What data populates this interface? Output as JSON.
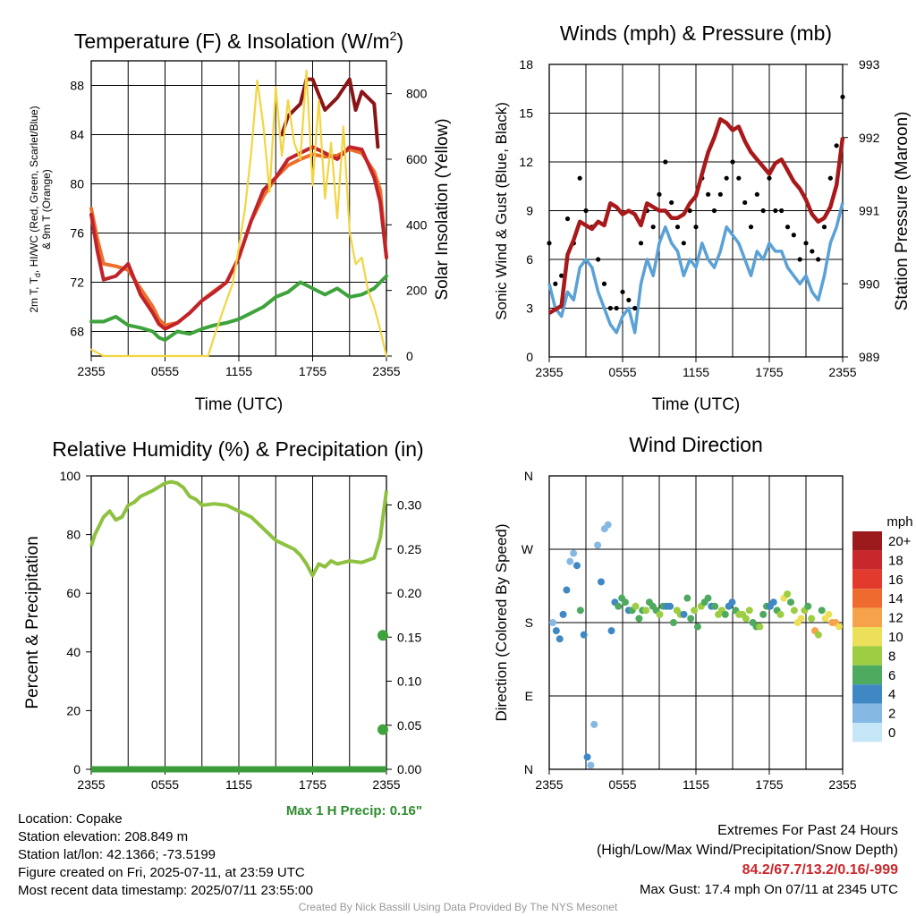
{
  "chart_data": [
    {
      "type": "line",
      "title": "Temperature (F) & Insolation (W/m²)",
      "title_parts": [
        "Temperature (F) & Insolation (W/m",
        "2",
        ")"
      ],
      "xlabel": "Time (UTC)",
      "ylabel_lines": [
        "2m T, T",
        "d",
        ", HI/WC (Red, Green, Scarlet/Blue)",
        "& 9m T (Orange)"
      ],
      "y2label": "Solar Insolation (Yellow)",
      "x_ticks": [
        "2355",
        "0555",
        "1155",
        "1755",
        "2355"
      ],
      "xlim": [
        0,
        24
      ],
      "ylim": [
        66,
        90
      ],
      "y_ticks": [
        68,
        72,
        76,
        80,
        84,
        88
      ],
      "y2lim": [
        0,
        900
      ],
      "y2_ticks": [
        0,
        200,
        400,
        600,
        800
      ],
      "grid": true,
      "series": [
        {
          "color": "#ee6f2c",
          "axis": "left",
          "x": [
            0,
            0.5,
            1,
            2,
            3,
            4,
            5,
            5.5,
            6,
            7,
            8,
            9,
            10,
            11,
            12,
            13,
            14,
            15,
            16,
            17,
            18,
            19,
            20,
            21,
            22,
            23,
            23.5,
            24
          ],
          "y": [
            78,
            75.5,
            73.5,
            73.3,
            73,
            71.5,
            70,
            69,
            68.5,
            68.7,
            69.5,
            70.5,
            71.3,
            72,
            74,
            77,
            79,
            80.5,
            81.5,
            82,
            82.4,
            82.2,
            82.3,
            82.8,
            82.5,
            81,
            79.5,
            74
          ]
        },
        {
          "color": "#c1232a",
          "axis": "left",
          "x": [
            0,
            0.5,
            1,
            2,
            3,
            4,
            5,
            5.5,
            6,
            7,
            8,
            9,
            10,
            11,
            12,
            13,
            14,
            15,
            16,
            17,
            18,
            19,
            20,
            21,
            22,
            23,
            23.5,
            24
          ],
          "y": [
            77.5,
            74.5,
            72.2,
            72.5,
            73.5,
            71,
            69.5,
            68.6,
            68.2,
            68.7,
            69.5,
            70.5,
            71.2,
            72,
            74,
            77,
            79.5,
            80.5,
            82,
            82.5,
            83,
            82.5,
            82,
            83,
            82.8,
            80.5,
            78.5,
            74
          ]
        },
        {
          "color": "#3ea33c",
          "axis": "left",
          "x": [
            0,
            1,
            2,
            3,
            4,
            5,
            5.5,
            6,
            7,
            8,
            9,
            10,
            11,
            12,
            13,
            14,
            15,
            16,
            17,
            18,
            19,
            20,
            21,
            22,
            23,
            24
          ],
          "y": [
            68.8,
            68.8,
            69.2,
            68.5,
            68.3,
            68,
            67.5,
            67.3,
            68,
            67.8,
            68.2,
            68.5,
            68.7,
            69,
            69.5,
            70,
            70.8,
            71.2,
            72,
            71.5,
            71,
            71.5,
            70.8,
            71,
            71.5,
            72.5
          ]
        },
        {
          "color": "#8b1416",
          "axis": "left",
          "x": [
            15.5,
            16,
            17,
            17.5,
            18,
            19,
            20,
            21,
            21.5,
            22,
            23,
            23.3
          ],
          "y": [
            84,
            85.5,
            86.5,
            88.5,
            88.5,
            86,
            87,
            88.5,
            86,
            87.5,
            86.5,
            83
          ]
        },
        {
          "color": "#f3d542",
          "axis": "right",
          "x": [
            0,
            1,
            2,
            3,
            4,
            5,
            6,
            7,
            8,
            9,
            9.5,
            10,
            11,
            11.5,
            12,
            12.5,
            13,
            13.5,
            14,
            14.5,
            15,
            15.5,
            16,
            16.5,
            17,
            17.5,
            18,
            18.5,
            19,
            19.5,
            20,
            20.5,
            21,
            21.5,
            22,
            22.5,
            23,
            23.5,
            24
          ],
          "y": [
            20,
            0,
            0,
            0,
            0,
            0,
            0,
            0,
            0,
            0,
            0,
            60,
            170,
            220,
            330,
            450,
            620,
            840,
            700,
            500,
            820,
            610,
            780,
            650,
            600,
            870,
            520,
            780,
            480,
            650,
            420,
            700,
            380,
            280,
            300,
            200,
            150,
            80,
            0
          ]
        }
      ]
    },
    {
      "type": "line",
      "title": "Winds (mph) & Pressure (mb)",
      "xlabel": "Time (UTC)",
      "ylabel": "Sonic Wind & Gust (Blue, Black)",
      "y2label": "Station Pressure (Maroon)",
      "x_ticks": [
        "2355",
        "0555",
        "1155",
        "1755",
        "2355"
      ],
      "xlim": [
        0,
        24
      ],
      "ylim": [
        0,
        18
      ],
      "y_ticks": [
        0,
        3,
        6,
        9,
        12,
        15,
        18
      ],
      "y2lim": [
        989,
        993
      ],
      "y2_ticks": [
        989,
        990,
        991,
        992,
        993
      ],
      "grid": true,
      "series": [
        {
          "color": "#5aa1d6",
          "kind": "wind",
          "x": [
            0,
            0.5,
            1,
            1.5,
            2,
            2.5,
            3,
            3.5,
            4,
            4.5,
            5,
            5.5,
            6,
            6.5,
            7,
            7.5,
            8,
            8.5,
            9,
            9.5,
            10,
            10.5,
            11,
            11.5,
            12,
            12.5,
            13,
            13.5,
            14,
            14.5,
            15,
            15.5,
            16,
            16.5,
            17,
            17.5,
            18,
            18.5,
            19,
            19.5,
            20,
            20.5,
            21,
            21.5,
            22,
            22.5,
            23,
            23.5,
            24
          ],
          "y": [
            4.5,
            3,
            2.5,
            4,
            3.5,
            5.5,
            6,
            5.5,
            4,
            3,
            2,
            1.5,
            2.5,
            3,
            1.5,
            4.5,
            6,
            5,
            7,
            8,
            7,
            6.5,
            5,
            6,
            5.5,
            7,
            6,
            5.5,
            6.5,
            8,
            7.5,
            7,
            6,
            5,
            6.5,
            6,
            7,
            6.5,
            6.5,
            5.5,
            5,
            4.5,
            5,
            4,
            3.5,
            5,
            7,
            8,
            9.5
          ]
        },
        {
          "color": "#000000",
          "kind": "gust",
          "x": [
            0,
            0.5,
            1,
            1.5,
            2,
            2.5,
            3,
            3.5,
            4,
            4.5,
            5,
            5.5,
            6,
            6.5,
            7,
            7.5,
            8,
            8.5,
            9,
            9.5,
            10,
            10.5,
            11,
            11.5,
            12,
            12.5,
            13,
            13.5,
            14,
            14.5,
            15,
            15.5,
            16,
            16.5,
            17,
            17.5,
            18,
            18.5,
            19,
            19.5,
            20,
            20.5,
            21,
            21.5,
            22,
            22.5,
            23,
            23.5,
            24
          ],
          "y": [
            7,
            4.5,
            5,
            8.5,
            7,
            11,
            9,
            8,
            6,
            4.5,
            3,
            3,
            4,
            3.5,
            3,
            7,
            9,
            8,
            10,
            12,
            9.5,
            8,
            7,
            9,
            8,
            11,
            10,
            9,
            10,
            11,
            12,
            11,
            9.5,
            8,
            10,
            9,
            11,
            9,
            9,
            8,
            7.5,
            6,
            7,
            6.5,
            6,
            8,
            11,
            13,
            16
          ]
        },
        {
          "color": "#a8191b",
          "kind": "pressure",
          "x": [
            0,
            0.5,
            1,
            1.5,
            2,
            2.5,
            3,
            3.5,
            4,
            4.5,
            5,
            5.5,
            6,
            6.5,
            7,
            7.5,
            8,
            8.5,
            9,
            9.5,
            10,
            10.5,
            11,
            11.5,
            12,
            12.5,
            13,
            13.5,
            14,
            14.5,
            15,
            15.5,
            16,
            16.5,
            17,
            17.5,
            18,
            18.5,
            19,
            19.5,
            20,
            20.5,
            21,
            21.5,
            22,
            22.5,
            23,
            23.5,
            24
          ],
          "y": [
            989.6,
            989.65,
            989.7,
            990.4,
            990.6,
            990.85,
            990.8,
            990.75,
            990.85,
            990.8,
            991.1,
            991.05,
            990.95,
            991.0,
            990.95,
            990.8,
            991.1,
            991.05,
            991.0,
            991.0,
            990.9,
            990.9,
            990.95,
            991.1,
            991.2,
            991.5,
            991.8,
            992.0,
            992.25,
            992.2,
            992.1,
            992.15,
            991.95,
            991.8,
            991.7,
            991.6,
            991.5,
            991.65,
            991.7,
            991.55,
            991.4,
            991.3,
            991.15,
            990.95,
            990.85,
            990.9,
            991.05,
            991.35,
            992.0
          ]
        }
      ]
    },
    {
      "type": "line",
      "title": "Relative Humidity (%) & Precipitation (in)",
      "ylabel": "Percent & Precipitation",
      "x_ticks": [
        "2355",
        "0555",
        "1155",
        "1755",
        "2355"
      ],
      "xlim": [
        0,
        24
      ],
      "ylim": [
        0,
        100
      ],
      "y_ticks": [
        0,
        20,
        40,
        60,
        80,
        100
      ],
      "y2lim": [
        0,
        0.333
      ],
      "y2_ticks": [
        "0.00",
        "0.05",
        "0.10",
        "0.15",
        "0.20",
        "0.25",
        "0.30"
      ],
      "grid": true,
      "series": [
        {
          "color": "#8dc13f",
          "kind": "rh",
          "x": [
            0,
            0.3,
            1,
            1.5,
            2,
            2.5,
            3,
            3.5,
            4,
            5,
            6,
            6.5,
            7,
            7.5,
            8,
            8.5,
            9,
            10,
            11,
            12,
            13,
            14,
            15,
            16,
            16.5,
            17,
            17.5,
            18,
            18.5,
            19,
            19.5,
            20,
            21,
            22,
            23,
            23.5,
            24
          ],
          "y": [
            76,
            80,
            86,
            88,
            85,
            86,
            90,
            91,
            93,
            95,
            97.5,
            98,
            97.5,
            96,
            93,
            92,
            90,
            90.5,
            90,
            88,
            86,
            82,
            78,
            76,
            75,
            73,
            70,
            66,
            70,
            69,
            71,
            70,
            71,
            70.5,
            72,
            79,
            95
          ]
        },
        {
          "color": "#3a9c3a",
          "kind": "precip",
          "x": [
            0,
            24
          ],
          "y": [
            0,
            0
          ]
        }
      ],
      "precip_points": [
        0.152,
        0.045
      ],
      "annotation": "Max 1 H Precip: 0.16\""
    },
    {
      "type": "scatter",
      "title": "Wind Direction",
      "ylabel": "Direction (Colored By Speed)",
      "x_ticks": [
        "2355",
        "0555",
        "1155",
        "1755",
        "2355"
      ],
      "xlim": [
        0,
        24
      ],
      "y_ticks": [
        "N",
        "E",
        "S",
        "W",
        "N"
      ],
      "ylim": [
        0,
        360
      ],
      "grid": true,
      "colorbar": {
        "title": "mph",
        "labels": [
          "20+",
          "18",
          "16",
          "14",
          "12",
          "10",
          "8",
          "6",
          "4",
          "2",
          "0"
        ],
        "colors": [
          "#9c1a1c",
          "#c8272b",
          "#e23b2e",
          "#ef6a2f",
          "#f6a24a",
          "#ece05a",
          "#9ccd43",
          "#4daa5f",
          "#3f88c4",
          "#85b9e3",
          "#c5e6f7"
        ]
      },
      "directions_deg": [
        180,
        170,
        160,
        190,
        220,
        255,
        265,
        250,
        195,
        165,
        15,
        5,
        55,
        275,
        230,
        295,
        300,
        170,
        205,
        200,
        210,
        205,
        195,
        195,
        200,
        185,
        195,
        195,
        205,
        200,
        195,
        190,
        200,
        200,
        200,
        180,
        195,
        190,
        190,
        210,
        185,
        195,
        175,
        200,
        205,
        210,
        200,
        200,
        190,
        195,
        190,
        200,
        205,
        195,
        190,
        190,
        185,
        195,
        180,
        175,
        175,
        190,
        200,
        200,
        205,
        195,
        190,
        210,
        215,
        205,
        195,
        180,
        185,
        195,
        200,
        185,
        170,
        165,
        195,
        185,
        190,
        180,
        180,
        175
      ],
      "speeds_mph": [
        2,
        4,
        3,
        4,
        3,
        2,
        2,
        3,
        5,
        4,
        3,
        2,
        2,
        2,
        3,
        2,
        2,
        4,
        4,
        5,
        6,
        5,
        4,
        6,
        8,
        6,
        5,
        7,
        6,
        5,
        6,
        7,
        5,
        4,
        4,
        6,
        7,
        8,
        4,
        5,
        6,
        7,
        6,
        8,
        5,
        6,
        4,
        5,
        7,
        8,
        5,
        4,
        4,
        6,
        7,
        8,
        7,
        8,
        5,
        6,
        8,
        6,
        5,
        4,
        4,
        6,
        7,
        9,
        7,
        5,
        8,
        10,
        9,
        8,
        6,
        8,
        11,
        7,
        6,
        9,
        10,
        12,
        11,
        9
      ]
    }
  ],
  "info": {
    "lines": [
      "Location: Copake",
      "Station elevation: 208.849 m",
      "Station lat/lon: 42.1366; -73.5199",
      "Figure created on Fri, 2025-07-11, at 23:59 UTC",
      "Most recent data timestamp: 2025/07/11 23:55:00"
    ],
    "extremes_title": "Extremes For Past 24 Hours",
    "extremes_sub": "(High/Low/Max Wind/Precipitation/Snow Depth)",
    "extremes_values": "84.2/67.7/13.2/0.16/-999",
    "max_gust": "Max Gust: 17.4 mph On 07/11 at 2345 UTC",
    "credit": "Created By Nick Bassill Using Data Provided By The NYS Mesonet",
    "extremes_color": "#c8272b",
    "precip_text_color": "#2e8b2e"
  }
}
